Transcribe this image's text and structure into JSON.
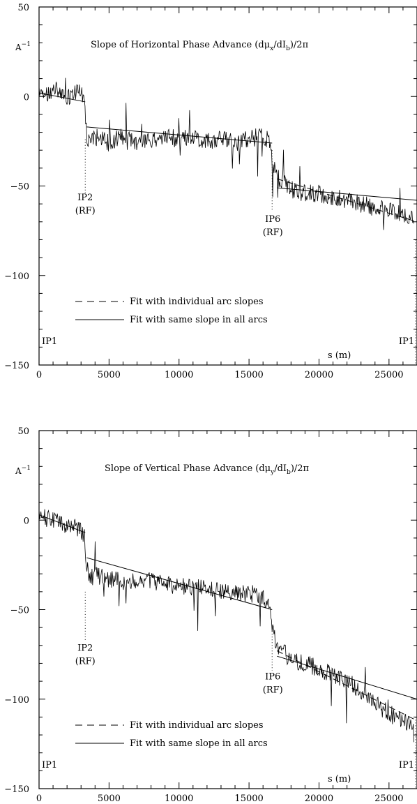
{
  "chart_data": [
    {
      "type": "line",
      "title": "Slope of Horizontal Phase Advance (dμ_x/dI_b)/2π",
      "title_parts": {
        "prefix": "Slope of Horizontal Phase Advance (d",
        "mu": "μ",
        "mu_sub": "x",
        "mid": "/dI",
        "mid_sub": "b",
        "suffix": ")/2π"
      },
      "ylabel": "A",
      "ylabel_sup": "−1",
      "xlabel": "s (m)",
      "xlim": [
        0,
        27000
      ],
      "ylim": [
        -150,
        50
      ],
      "xticks": [
        {
          "v": 0,
          "label": "0"
        },
        {
          "v": 5000,
          "label": "5000"
        },
        {
          "v": 10000,
          "label": "10000"
        },
        {
          "v": 15000,
          "label": "15000"
        },
        {
          "v": 20000,
          "label": "20000"
        },
        {
          "v": 25000,
          "label": "25000"
        }
      ],
      "yticks": [
        {
          "v": -150,
          "label": "−150"
        },
        {
          "v": -100,
          "label": "−100"
        },
        {
          "v": -50,
          "label": "−50"
        },
        {
          "v": 0,
          "label": "0"
        },
        {
          "v": 50,
          "label": "50"
        }
      ],
      "legend": {
        "placement": "bottom-left",
        "entries": [
          {
            "label": "Fit with individual arc slopes",
            "style": "dashed"
          },
          {
            "label": "Fit with same slope in all arcs",
            "style": "solid"
          }
        ]
      },
      "annotations": [
        {
          "x": 3300,
          "y": -58,
          "lines": [
            "IP2",
            "(RF)"
          ]
        },
        {
          "x": 16700,
          "y": -70,
          "lines": [
            "IP6",
            "(RF)"
          ]
        }
      ],
      "corner_labels": {
        "left": "IP1",
        "right": "IP1"
      },
      "dotted_markers": [
        {
          "x": 3300,
          "y_from": -24,
          "y_to": -54
        },
        {
          "x": 16650,
          "y_from": -30,
          "y_to": -64
        },
        {
          "x": 26900,
          "y_from": -80,
          "y_to": -150
        }
      ],
      "series": [
        {
          "style": "jagged",
          "points": [
            [
              0,
              3
            ],
            [
              600,
              0
            ],
            [
              1200,
              4
            ],
            [
              1800,
              -2
            ],
            [
              2400,
              2
            ],
            [
              3000,
              3
            ],
            [
              3250,
              -5
            ],
            [
              3400,
              -22
            ],
            [
              3600,
              -26
            ],
            [
              4200,
              -22
            ],
            [
              5000,
              -26
            ],
            [
              6000,
              -22
            ],
            [
              7000,
              -26
            ],
            [
              8000,
              -24
            ],
            [
              9000,
              -22
            ],
            [
              10000,
              -24
            ],
            [
              11000,
              -23
            ],
            [
              12000,
              -25
            ],
            [
              13000,
              -24
            ],
            [
              14000,
              -26
            ],
            [
              15000,
              -24
            ],
            [
              15800,
              -22
            ],
            [
              16400,
              -24
            ],
            [
              16700,
              -38
            ],
            [
              17000,
              -45
            ],
            [
              17500,
              -48
            ],
            [
              18000,
              -52
            ],
            [
              19000,
              -54
            ],
            [
              20000,
              -54
            ],
            [
              21000,
              -56
            ],
            [
              22000,
              -58
            ],
            [
              23000,
              -60
            ],
            [
              24000,
              -62
            ],
            [
              25000,
              -64
            ],
            [
              26000,
              -66
            ],
            [
              26800,
              -70
            ]
          ]
        },
        {
          "style": "solid",
          "segments": [
            [
              [
                0,
                2
              ],
              [
                3300,
                -3
              ]
            ],
            [
              [
                3400,
                -17
              ],
              [
                16650,
                -26
              ]
            ],
            [
              [
                17000,
                -51
              ],
              [
                27000,
                -58
              ]
            ]
          ]
        },
        {
          "style": "dashed",
          "segments": [
            [
              [
                17000,
                -46
              ],
              [
                27000,
                -70
              ]
            ]
          ]
        }
      ]
    },
    {
      "type": "line",
      "title": "Slope of Vertical Phase Advance (dμ_y/dI_b)/2π",
      "title_parts": {
        "prefix": "Slope of Vertical Phase Advance (d",
        "mu": "μ",
        "mu_sub": "y",
        "mid": "/dI",
        "mid_sub": "b",
        "suffix": ")/2π"
      },
      "ylabel": "A",
      "ylabel_sup": "−1",
      "xlabel": "s (m)",
      "xlim": [
        0,
        27000
      ],
      "ylim": [
        -150,
        50
      ],
      "xticks": [
        {
          "v": 0,
          "label": "0"
        },
        {
          "v": 5000,
          "label": "5000"
        },
        {
          "v": 10000,
          "label": "10000"
        },
        {
          "v": 15000,
          "label": "15000"
        },
        {
          "v": 20000,
          "label": "20000"
        },
        {
          "v": 25000,
          "label": "25000"
        }
      ],
      "yticks": [
        {
          "v": -150,
          "label": "−150"
        },
        {
          "v": -100,
          "label": "−100"
        },
        {
          "v": -50,
          "label": "−50"
        },
        {
          "v": 0,
          "label": "0"
        },
        {
          "v": 50,
          "label": "50"
        }
      ],
      "legend": {
        "placement": "bottom-left",
        "entries": [
          {
            "label": "Fit with individual arc slopes",
            "style": "dashed"
          },
          {
            "label": "Fit with same slope in all arcs",
            "style": "solid"
          }
        ]
      },
      "annotations": [
        {
          "x": 3300,
          "y": -73,
          "lines": [
            "IP2",
            "(RF)"
          ]
        },
        {
          "x": 16700,
          "y": -89,
          "lines": [
            "IP6",
            "(RF)"
          ]
        }
      ],
      "corner_labels": {
        "left": "IP1",
        "right": "IP1"
      },
      "dotted_markers": [
        {
          "x": 3300,
          "y_from": -40,
          "y_to": -68
        },
        {
          "x": 16650,
          "y_from": -62,
          "y_to": -84
        },
        {
          "x": 26900,
          "y_from": -110,
          "y_to": -150
        }
      ],
      "series": [
        {
          "style": "jagged",
          "points": [
            [
              0,
              2
            ],
            [
              600,
              1
            ],
            [
              1200,
              -1
            ],
            [
              1800,
              -3
            ],
            [
              2400,
              -4
            ],
            [
              3000,
              -5
            ],
            [
              3250,
              -10
            ],
            [
              3400,
              -24
            ],
            [
              3600,
              -32
            ],
            [
              4200,
              -31
            ],
            [
              5000,
              -33
            ],
            [
              6000,
              -34
            ],
            [
              7000,
              -35
            ],
            [
              8000,
              -34
            ],
            [
              9000,
              -36
            ],
            [
              10000,
              -37
            ],
            [
              11000,
              -38
            ],
            [
              12000,
              -38
            ],
            [
              13000,
              -40
            ],
            [
              14000,
              -40
            ],
            [
              15000,
              -41
            ],
            [
              15800,
              -42
            ],
            [
              16400,
              -45
            ],
            [
              16700,
              -62
            ],
            [
              17000,
              -70
            ],
            [
              17500,
              -74
            ],
            [
              18000,
              -78
            ],
            [
              19000,
              -80
            ],
            [
              20000,
              -83
            ],
            [
              21000,
              -86
            ],
            [
              22000,
              -90
            ],
            [
              23000,
              -95
            ],
            [
              24000,
              -102
            ],
            [
              25000,
              -108
            ],
            [
              26000,
              -112
            ],
            [
              26800,
              -115
            ]
          ]
        },
        {
          "style": "solid",
          "segments": [
            [
              [
                0,
                3
              ],
              [
                3300,
                -7
              ]
            ],
            [
              [
                3400,
                -21
              ],
              [
                16650,
                -50
              ]
            ],
            [
              [
                17000,
                -76
              ],
              [
                27000,
                -100
              ]
            ]
          ]
        },
        {
          "style": "dashed",
          "segments": [
            [
              [
                17000,
                -73
              ],
              [
                27000,
                -112
              ]
            ]
          ]
        }
      ]
    }
  ]
}
